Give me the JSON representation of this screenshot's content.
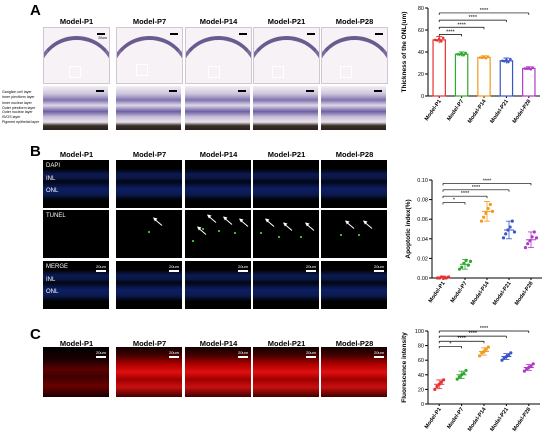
{
  "panels": {
    "A": {
      "label": "A",
      "groups": [
        "Model-P1",
        "Model-P7",
        "Model-P14",
        "Model-P21",
        "Model-P28"
      ],
      "scale": "20um",
      "layers": [
        "Ganglion cell layer",
        "Inner plexiform layer",
        "Inner nuclear layer",
        "Outer plexiform layer",
        "Outer nuclear layer",
        "IS/OS layer",
        "Pigment epithelial layer"
      ]
    },
    "B": {
      "label": "B",
      "groups": [
        "Model-P1",
        "Model-P7",
        "Model-P14",
        "Model-P21",
        "Model-P28"
      ],
      "rows": [
        "DAPI",
        "TUNEL",
        "MERGE"
      ],
      "layer_inl": "INL",
      "layer_onl": "ONL",
      "scale": "20um"
    },
    "C": {
      "label": "C",
      "groups": [
        "Model-P1",
        "Model-P7",
        "Model-P14",
        "Model-P21",
        "Model-P28"
      ],
      "scale": "20um"
    }
  },
  "chart_data": [
    {
      "type": "bar",
      "ylabel": "Thickness of the ONL(um)",
      "categories": [
        "Model-P1",
        "Model-P7",
        "Model-P14",
        "Model-P21",
        "Model-P28"
      ],
      "values": [
        51,
        38,
        35,
        32,
        25
      ],
      "errors": [
        3,
        2,
        1.5,
        2.5,
        1.5
      ],
      "colors": [
        "#e8312f",
        "#2fa82f",
        "#f29a1b",
        "#3a55c8",
        "#b03ac8"
      ],
      "ylim": [
        0,
        80
      ],
      "yticks": [
        0,
        20,
        40,
        60,
        80
      ],
      "significance": [
        {
          "from": 0,
          "to": 1,
          "label": "****"
        },
        {
          "from": 0,
          "to": 2,
          "label": "****"
        },
        {
          "from": 0,
          "to": 3,
          "label": "****"
        },
        {
          "from": 0,
          "to": 4,
          "label": "****"
        }
      ]
    },
    {
      "type": "scatter",
      "ylabel": "Apoptotic index(%)",
      "categories": [
        "Model-P1",
        "Model-P7",
        "Model-P14",
        "Model-P21",
        "Model-P28"
      ],
      "means": [
        0.0,
        0.014,
        0.068,
        0.049,
        0.039
      ],
      "errors": [
        0.002,
        0.005,
        0.01,
        0.009,
        0.008
      ],
      "points": [
        [
          0.0,
          0.0,
          0.001,
          0.0,
          0.0,
          0.001
        ],
        [
          0.009,
          0.011,
          0.015,
          0.018,
          0.013,
          0.017
        ],
        [
          0.058,
          0.062,
          0.066,
          0.071,
          0.075,
          0.068
        ],
        [
          0.041,
          0.045,
          0.049,
          0.052,
          0.058,
          0.047
        ],
        [
          0.031,
          0.035,
          0.038,
          0.042,
          0.047,
          0.041
        ]
      ],
      "colors": [
        "#e8312f",
        "#2fa82f",
        "#f29a1b",
        "#3a55c8",
        "#b03ac8"
      ],
      "ylim": [
        0,
        0.1
      ],
      "yticks": [
        "0.00",
        "0.02",
        "0.04",
        "0.06",
        "0.08",
        "0.10"
      ],
      "significance": [
        {
          "from": 0,
          "to": 1,
          "label": "*"
        },
        {
          "from": 0,
          "to": 2,
          "label": "****"
        },
        {
          "from": 0,
          "to": 3,
          "label": "****"
        },
        {
          "from": 0,
          "to": 4,
          "label": "****"
        }
      ]
    },
    {
      "type": "scatter",
      "ylabel": "Fluorescence intensity",
      "categories": [
        "Model-P1",
        "Model-P7",
        "Model-P14",
        "Model-P21",
        "Model-P28"
      ],
      "means": [
        27,
        40,
        72,
        65,
        50
      ],
      "errors": [
        6,
        5,
        5,
        4,
        4
      ],
      "points": [
        [
          20,
          24,
          27,
          30,
          33
        ],
        [
          34,
          37,
          40,
          42,
          46
        ],
        [
          66,
          70,
          72,
          75,
          78
        ],
        [
          60,
          63,
          65,
          67,
          70
        ],
        [
          45,
          48,
          50,
          52,
          55
        ]
      ],
      "colors": [
        "#e8312f",
        "#2fa82f",
        "#f29a1b",
        "#3a55c8",
        "#b03ac8"
      ],
      "ylim": [
        0,
        100
      ],
      "yticks": [
        0,
        20,
        40,
        60,
        80,
        100
      ],
      "significance": [
        {
          "from": 0,
          "to": 1,
          "label": "*"
        },
        {
          "from": 0,
          "to": 2,
          "label": "****"
        },
        {
          "from": 0,
          "to": 3,
          "label": "****"
        },
        {
          "from": 0,
          "to": 4,
          "label": "****"
        }
      ]
    }
  ]
}
